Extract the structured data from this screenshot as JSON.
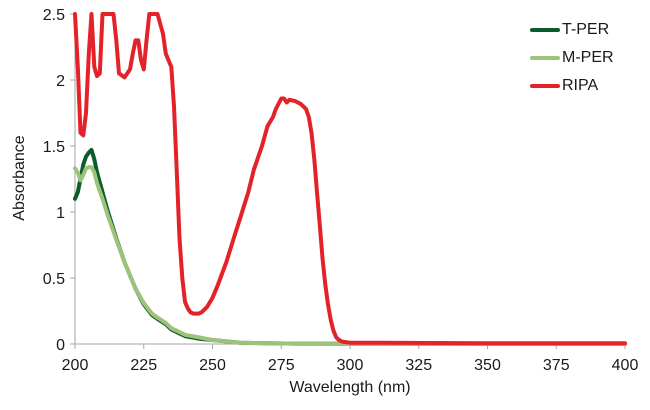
{
  "chart_data": {
    "type": "line",
    "title": "",
    "xlabel": "Wavelength (nm)",
    "ylabel": "Absorbance",
    "xlim": [
      200,
      400
    ],
    "ylim": [
      0,
      2.5
    ],
    "xticks": [
      200,
      225,
      250,
      275,
      300,
      325,
      350,
      375,
      400
    ],
    "yticks": [
      0,
      0.5,
      1,
      1.5,
      2,
      2.5
    ],
    "ytick_labels": [
      "0",
      "0.5",
      "1",
      "1.5",
      "2",
      "2.5"
    ],
    "grid": false,
    "legend_position": "top-right",
    "series": [
      {
        "name": "T-PER",
        "color": "#0d5a2a",
        "x": [
          200,
          201,
          202,
          203,
          204,
          205,
          206,
          207,
          208,
          210,
          212,
          215,
          218,
          220,
          222,
          225,
          228,
          230,
          233,
          235,
          238,
          240,
          245,
          250,
          255,
          260,
          270,
          280,
          300,
          400
        ],
        "y": [
          1.1,
          1.15,
          1.25,
          1.36,
          1.42,
          1.45,
          1.47,
          1.4,
          1.3,
          1.15,
          1.0,
          0.8,
          0.62,
          0.52,
          0.42,
          0.3,
          0.22,
          0.19,
          0.15,
          0.11,
          0.08,
          0.06,
          0.04,
          0.03,
          0.02,
          0.01,
          0.005,
          0.003,
          0.002,
          0.002
        ]
      },
      {
        "name": "M-PER",
        "color": "#9dc27a",
        "x": [
          200,
          201,
          202,
          203,
          204,
          205,
          206,
          207,
          208,
          210,
          212,
          215,
          218,
          220,
          222,
          225,
          228,
          230,
          233,
          235,
          238,
          240,
          245,
          250,
          255,
          260,
          270,
          280,
          300,
          400
        ],
        "y": [
          1.33,
          1.3,
          1.24,
          1.28,
          1.33,
          1.34,
          1.34,
          1.3,
          1.22,
          1.1,
          0.97,
          0.79,
          0.62,
          0.52,
          0.42,
          0.31,
          0.23,
          0.2,
          0.16,
          0.12,
          0.09,
          0.07,
          0.05,
          0.03,
          0.02,
          0.01,
          0.005,
          0.003,
          0.002,
          0.002
        ]
      },
      {
        "name": "RIPA",
        "color": "#e3222a",
        "x": [
          200,
          201,
          202,
          203,
          204,
          205,
          206,
          207,
          208,
          209,
          210,
          211,
          212,
          213,
          214,
          215,
          216,
          218,
          220,
          221,
          222,
          223,
          224,
          225,
          226,
          227,
          228,
          230,
          232,
          233,
          234,
          235,
          236,
          237,
          238,
          239,
          240,
          241,
          242,
          243,
          244,
          245,
          246,
          248,
          250,
          252,
          255,
          258,
          260,
          263,
          265,
          268,
          270,
          272,
          273,
          275,
          276,
          277,
          278,
          280,
          282,
          283,
          284,
          285,
          286,
          287,
          288,
          289,
          290,
          291,
          292,
          293,
          294,
          295,
          296,
          297,
          298,
          300,
          305,
          320,
          350,
          400
        ],
        "y": [
          2.5,
          2.1,
          1.6,
          1.58,
          1.75,
          2.2,
          2.5,
          2.1,
          2.03,
          2.05,
          2.5,
          2.5,
          2.5,
          2.5,
          2.5,
          2.3,
          2.05,
          2.02,
          2.08,
          2.2,
          2.3,
          2.3,
          2.15,
          2.08,
          2.3,
          2.5,
          2.5,
          2.5,
          2.35,
          2.2,
          2.15,
          2.1,
          1.8,
          1.3,
          0.8,
          0.5,
          0.32,
          0.27,
          0.24,
          0.23,
          0.23,
          0.23,
          0.24,
          0.28,
          0.35,
          0.45,
          0.62,
          0.82,
          0.95,
          1.15,
          1.32,
          1.5,
          1.65,
          1.72,
          1.78,
          1.86,
          1.86,
          1.83,
          1.85,
          1.84,
          1.82,
          1.8,
          1.78,
          1.72,
          1.6,
          1.4,
          1.15,
          0.9,
          0.65,
          0.45,
          0.3,
          0.18,
          0.1,
          0.05,
          0.03,
          0.02,
          0.015,
          0.01,
          0.01,
          0.008,
          0.006,
          0.006
        ]
      }
    ]
  }
}
